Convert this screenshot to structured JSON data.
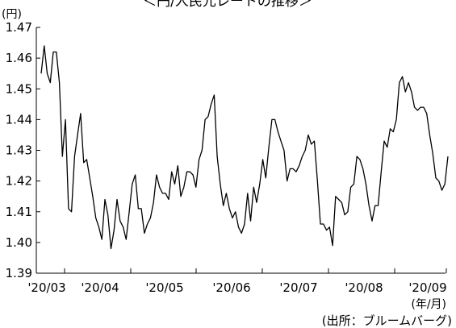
{
  "chart_data": {
    "type": "line",
    "title": "＜円/人民元レートの推移＞",
    "y_unit": "(円)",
    "x_unit": "(年/月)",
    "source": "(出所：ブルームバーグ)",
    "ylim": [
      1.39,
      1.47
    ],
    "yticks": [
      "1.47",
      "1.46",
      "1.45",
      "1.44",
      "1.43",
      "1.42",
      "1.41",
      "1.40",
      "1.39"
    ],
    "xticks": [
      "'20/03",
      "'20/04",
      "'20/05",
      "'20/06",
      "'20/07",
      "'20/08",
      "'20/09"
    ],
    "grid": false,
    "legend": "none",
    "line_color": "#000000",
    "series": [
      {
        "values": [
          1.455,
          1.464,
          1.455,
          1.452,
          1.462,
          1.462,
          1.452,
          1.428,
          1.44,
          1.411,
          1.41,
          1.428,
          1.435,
          1.442,
          1.426,
          1.427,
          1.421,
          1.415,
          1.408,
          1.405,
          1.401,
          1.414,
          1.409,
          1.398,
          1.404,
          1.414,
          1.407,
          1.405,
          1.401,
          1.41,
          1.419,
          1.422,
          1.411,
          1.411,
          1.403,
          1.406,
          1.408,
          1.413,
          1.422,
          1.418,
          1.416,
          1.416,
          1.414,
          1.423,
          1.419,
          1.425,
          1.415,
          1.418,
          1.423,
          1.423,
          1.422,
          1.418,
          1.427,
          1.43,
          1.44,
          1.441,
          1.445,
          1.448,
          1.428,
          1.419,
          1.412,
          1.416,
          1.411,
          1.408,
          1.41,
          1.405,
          1.403,
          1.406,
          1.416,
          1.407,
          1.418,
          1.413,
          1.419,
          1.427,
          1.421,
          1.431,
          1.44,
          1.44,
          1.436,
          1.433,
          1.43,
          1.42,
          1.424,
          1.424,
          1.423,
          1.425,
          1.428,
          1.43,
          1.435,
          1.432,
          1.433,
          1.42,
          1.406,
          1.406,
          1.404,
          1.405,
          1.399,
          1.415,
          1.414,
          1.413,
          1.409,
          1.41,
          1.418,
          1.419,
          1.428,
          1.427,
          1.424,
          1.419,
          1.412,
          1.407,
          1.412,
          1.412,
          1.423,
          1.433,
          1.431,
          1.437,
          1.436,
          1.44,
          1.452,
          1.454,
          1.449,
          1.452,
          1.449,
          1.444,
          1.443,
          1.444,
          1.444,
          1.442,
          1.435,
          1.429,
          1.421,
          1.42,
          1.417,
          1.419,
          1.428
        ]
      }
    ]
  }
}
